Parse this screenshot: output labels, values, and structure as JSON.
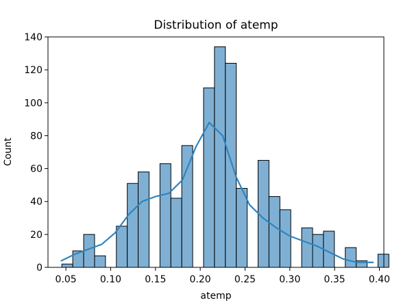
{
  "chart_data": {
    "type": "bar",
    "title": "Distribution of atemp",
    "xlabel": "atemp",
    "ylabel": "Count",
    "xlim": [
      0.03,
      0.405
    ],
    "ylim": [
      0,
      140
    ],
    "x_ticks": [
      0.05,
      0.1,
      0.15,
      0.2,
      0.25,
      0.3,
      0.35,
      0.4
    ],
    "x_tick_labels": [
      "0.05",
      "0.10",
      "0.15",
      "0.20",
      "0.25",
      "0.30",
      "0.35",
      "0.40"
    ],
    "y_ticks": [
      0,
      20,
      40,
      60,
      80,
      100,
      120,
      140
    ],
    "y_tick_labels": [
      "0",
      "20",
      "40",
      "60",
      "80",
      "100",
      "120",
      "140"
    ],
    "grid": false,
    "legend": false,
    "bin_start": 0.0455,
    "bin_width": 0.01217,
    "values": [
      2,
      10,
      20,
      7,
      0,
      25,
      51,
      58,
      0,
      63,
      42,
      74,
      0,
      109,
      134,
      124,
      48,
      0,
      65,
      43,
      35,
      0,
      24,
      20,
      22,
      0,
      12,
      4,
      0,
      8
    ],
    "kde": {
      "x": [
        0.045,
        0.06,
        0.075,
        0.09,
        0.105,
        0.12,
        0.135,
        0.15,
        0.165,
        0.18,
        0.195,
        0.21,
        0.225,
        0.24,
        0.255,
        0.27,
        0.285,
        0.3,
        0.315,
        0.33,
        0.345,
        0.36,
        0.375,
        0.393
      ],
      "y": [
        4,
        8,
        11,
        14,
        21,
        32,
        40,
        43,
        45,
        53,
        73,
        88,
        80,
        55,
        38,
        30,
        24,
        19,
        16,
        13,
        9,
        5,
        3,
        3
      ]
    },
    "colors": {
      "bar_fill": "#7fb0d4",
      "bar_edge": "#000000",
      "kde_line": "#2f84bf"
    }
  }
}
